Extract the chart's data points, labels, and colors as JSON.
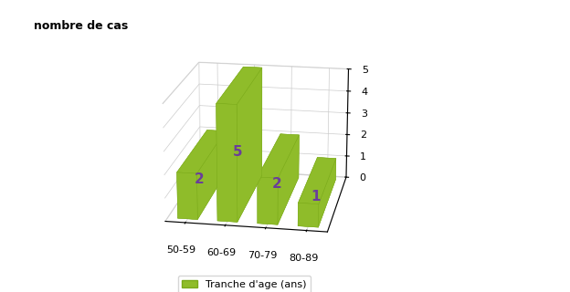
{
  "categories": [
    "50-59",
    "60-69",
    "70-79",
    "80-89"
  ],
  "values": [
    2,
    5,
    2,
    1
  ],
  "bar_color": "#8fbc2a",
  "label_color": "#6a3d9a",
  "ylabel": "nombre de cas",
  "legend_label": "Tranche d'age (ans)",
  "zlim": [
    0,
    5
  ],
  "zticks": [
    0,
    1,
    2,
    3,
    4,
    5
  ],
  "background_color": "#ffffff",
  "bar_width": 0.6,
  "bar_depth": 0.4,
  "elev": 18,
  "azim": -80
}
